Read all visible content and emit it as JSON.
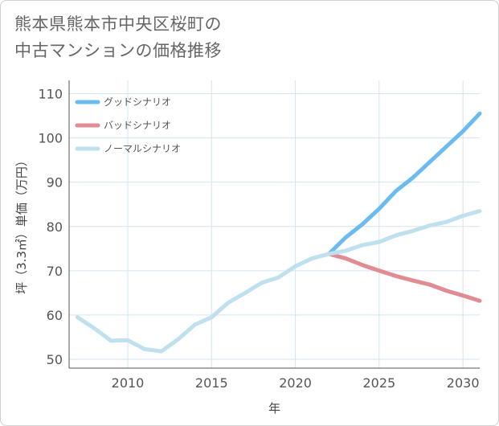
{
  "title_lines": [
    "熊本県熊本市中央区桜町の",
    "中古マンションの価格推移"
  ],
  "colors": {
    "good": "#6cbbf0",
    "bad": "#e08c92",
    "normal": "#bfe0ef",
    "grid": "#d3e4ee",
    "axis": "#555555"
  },
  "chart_data": {
    "type": "line",
    "title": "熊本県熊本市中央区桜町の中古マンションの価格推移",
    "xlabel": "年",
    "ylabel": "坪（3.3㎡）単価（万円）",
    "xlim": [
      2006.5,
      2031
    ],
    "ylim": [
      48,
      113
    ],
    "xticks": [
      2010,
      2015,
      2020,
      2025,
      2030
    ],
    "yticks": [
      50,
      60,
      70,
      80,
      90,
      100,
      110
    ],
    "grid": true,
    "legend_position": "top-left",
    "series": [
      {
        "name": "グッドシナリオ",
        "color": "#6cbbf0",
        "x": [
          2022,
          2023,
          2024,
          2025,
          2026,
          2027,
          2028,
          2029,
          2030,
          2031
        ],
        "y": [
          73.8,
          77.5,
          80.5,
          84.0,
          88.0,
          91.0,
          94.5,
          98.0,
          101.5,
          105.5
        ]
      },
      {
        "name": "バッドシナリオ",
        "color": "#e08c92",
        "x": [
          2022,
          2023,
          2024,
          2025,
          2026,
          2027,
          2028,
          2029,
          2030,
          2031
        ],
        "y": [
          73.8,
          72.8,
          71.3,
          70.0,
          68.8,
          67.8,
          66.9,
          65.5,
          64.4,
          63.2
        ]
      },
      {
        "name": "ノーマルシナリオ",
        "color": "#bfe0ef",
        "x": [
          2007,
          2008,
          2009,
          2010,
          2011,
          2012,
          2013,
          2014,
          2015,
          2016,
          2017,
          2018,
          2019,
          2020,
          2021,
          2022,
          2023,
          2024,
          2025,
          2026,
          2027,
          2028,
          2029,
          2030,
          2031
        ],
        "y": [
          59.5,
          57.0,
          54.2,
          54.3,
          52.3,
          51.8,
          54.5,
          57.8,
          59.5,
          62.8,
          65.0,
          67.3,
          68.5,
          71.0,
          72.8,
          73.8,
          74.5,
          75.8,
          76.5,
          78.0,
          79.0,
          80.2,
          81.0,
          82.4,
          83.5
        ]
      }
    ]
  }
}
